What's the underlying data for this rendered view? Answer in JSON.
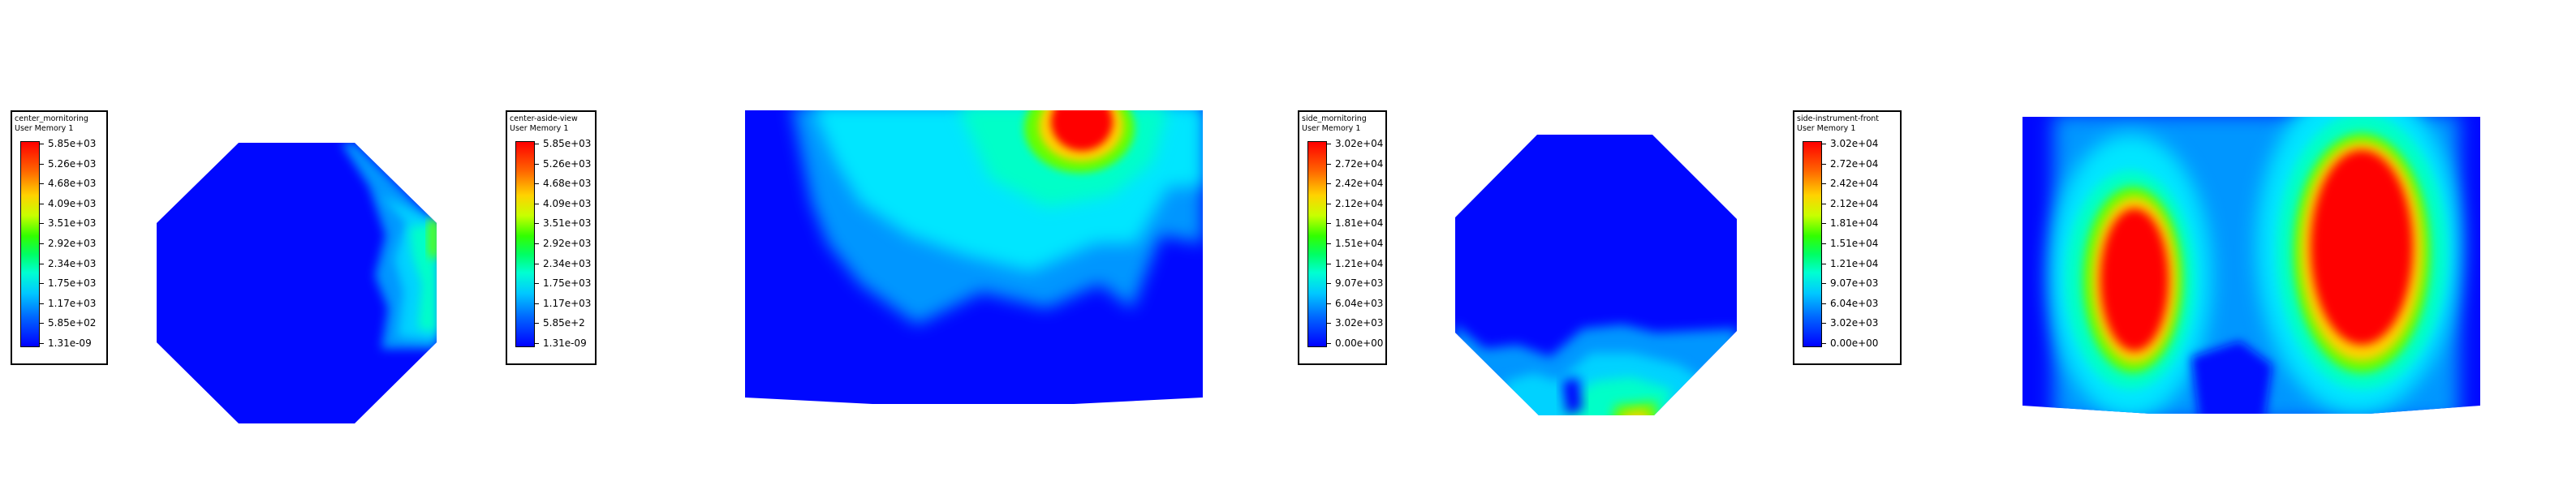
{
  "panels": [
    {
      "legend_title": "center_mornitoring",
      "legend_subtitle": "User Memory 1",
      "colorbar_labels": [
        "5.85e+03",
        "5.26e+03",
        "4.68e+03",
        "4.09e+03",
        "3.51e+03",
        "2.92e+03",
        "2.34e+03",
        "1.75e+03",
        "1.17e+03",
        "5.85e+02",
        "1.31e-09"
      ]
    },
    {
      "legend_title": "center-aside-view",
      "legend_subtitle": "User Memory 1",
      "colorbar_labels": [
        "5.85e+03",
        "5.26e+03",
        "4.68e+03",
        "4.09e+03",
        "3.51e+03",
        "2.92e+03",
        "2.34e+03",
        "1.75e+03",
        "1.17e+03",
        "5.85e+2",
        "1.31e-09"
      ]
    },
    {
      "legend_title": "side_mornitoring",
      "legend_subtitle": "User Memory 1",
      "colorbar_labels": [
        "3.02e+04",
        "2.72e+04",
        "2.42e+04",
        "2.12e+04",
        "1.81e+04",
        "1.51e+04",
        "1.21e+04",
        "9.07e+03",
        "6.04e+03",
        "3.02e+03",
        "0.00e+00"
      ]
    },
    {
      "legend_title": "side-instrument-front",
      "legend_subtitle": "User Memory 1",
      "colorbar_labels": [
        "3.02e+04",
        "2.72e+04",
        "2.42e+04",
        "2.12e+04",
        "1.81e+04",
        "1.51e+04",
        "1.21e+04",
        "9.07e+03",
        "6.04e+03",
        "3.02e+03",
        "0.00e+00"
      ]
    }
  ],
  "colors": {
    "low": "#0000ff",
    "mid_low": "#00c8ff",
    "mid": "#00ffd2",
    "mid_high": "#32ff00",
    "high_mid": "#ffd200",
    "high": "#ff0000",
    "background": "#ffffff"
  }
}
